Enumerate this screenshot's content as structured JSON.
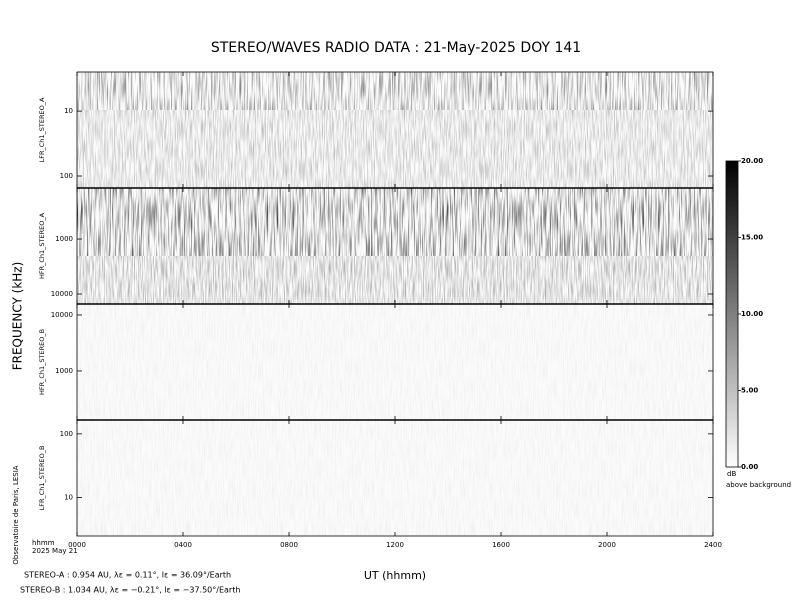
{
  "chart_data": {
    "type": "spectrogram",
    "title": "STEREO/WAVES  RADIO  DATA : 21-May-2025  DOY 141",
    "ylabel": "FREQUENCY (kHz)",
    "xlabel": "UT (hhmm)",
    "x_unit_label": "hhmm",
    "date_label": "2025 May 21",
    "credit": "Observatoire de Paris, LESIA",
    "xlim": [
      0,
      2400
    ],
    "xticks": [
      {
        "value": 0,
        "label": "0000"
      },
      {
        "value": 400,
        "label": "0400"
      },
      {
        "value": 800,
        "label": "0800"
      },
      {
        "value": 1200,
        "label": "1200"
      },
      {
        "value": 1600,
        "label": "1600"
      },
      {
        "value": 2000,
        "label": "2000"
      },
      {
        "value": 2400,
        "label": "2400"
      }
    ],
    "log_y": true,
    "panels": [
      {
        "label": "LFR_Ch1_STEREO_A",
        "ylim": [
          153,
          2.5
        ],
        "yticks": [
          10,
          100
        ]
      },
      {
        "label": "HFR_Ch1_STEREO_A",
        "ylim": [
          15200,
          118
        ],
        "yticks": [
          1000,
          10000
        ]
      },
      {
        "label": "HFR_Ch1_STEREO_B",
        "ylim": [
          133,
          15700
        ],
        "yticks": [
          1000,
          10000
        ]
      },
      {
        "label": "LFR_Ch1_STEREO_B",
        "ylim": [
          2.5,
          165
        ],
        "yticks": [
          10,
          100
        ]
      }
    ],
    "colorbar": {
      "label": "dB",
      "sublabel": "above background",
      "lim": [
        0,
        20
      ],
      "ticks": [
        {
          "value": 0,
          "label": "0.00"
        },
        {
          "value": 5,
          "label": "5.00"
        },
        {
          "value": 10,
          "label": "10.00"
        },
        {
          "value": 15,
          "label": "15.00"
        },
        {
          "value": 20,
          "label": "20.00"
        }
      ]
    },
    "notes": [
      "STEREO-A : 0.954 AU, λε = 0.11°, lε = 36.09°/Earth",
      "STEREO-B : 1.034 AU, λε = −0.21°, lε = −37.50°/Earth"
    ]
  }
}
